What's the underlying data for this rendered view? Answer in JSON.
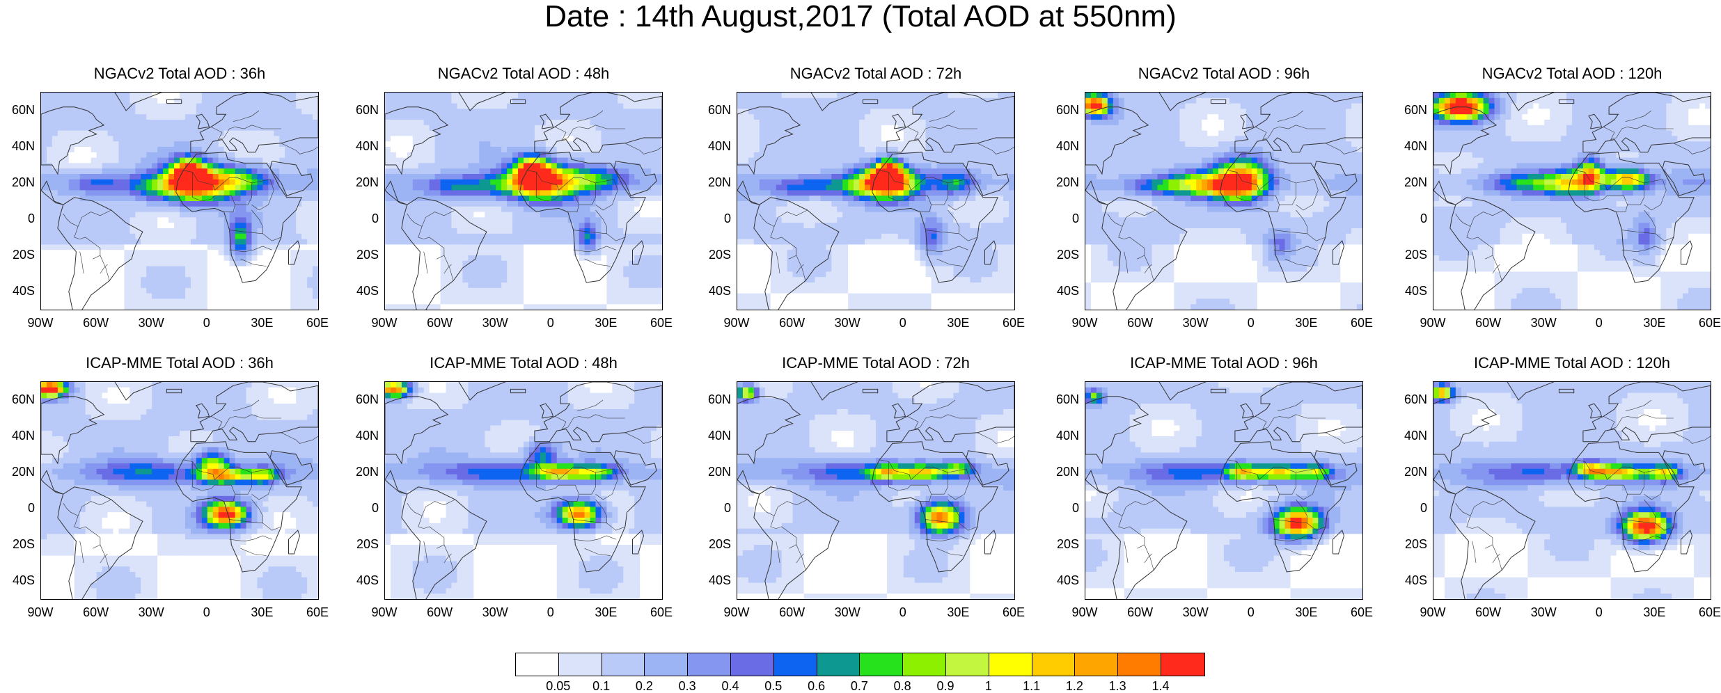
{
  "figure_title": "Date : 14th August,2017 (Total AOD at 550nm)",
  "panels": [
    {
      "title": "NGACv2 Total AOD : 36h",
      "model": "NGACv2",
      "hour": 36
    },
    {
      "title": "NGACv2 Total AOD : 48h",
      "model": "NGACv2",
      "hour": 48
    },
    {
      "title": "NGACv2 Total AOD : 72h",
      "model": "NGACv2",
      "hour": 72
    },
    {
      "title": "NGACv2 Total AOD : 96h",
      "model": "NGACv2",
      "hour": 96
    },
    {
      "title": "NGACv2 Total AOD : 120h",
      "model": "NGACv2",
      "hour": 120
    },
    {
      "title": "ICAP-MME Total AOD : 36h",
      "model": "ICAP-MME",
      "hour": 36
    },
    {
      "title": "ICAP-MME Total AOD : 48h",
      "model": "ICAP-MME",
      "hour": 48
    },
    {
      "title": "ICAP-MME Total AOD : 72h",
      "model": "ICAP-MME",
      "hour": 72
    },
    {
      "title": "ICAP-MME Total AOD : 96h",
      "model": "ICAP-MME",
      "hour": 96
    },
    {
      "title": "ICAP-MME Total AOD : 120h",
      "model": "ICAP-MME",
      "hour": 120
    }
  ],
  "lat_ticks": [
    "60N",
    "40N",
    "20N",
    "0",
    "20S",
    "40S"
  ],
  "lon_ticks": [
    "90W",
    "60W",
    "30W",
    "0",
    "30E",
    "60E"
  ],
  "colorbar": {
    "colors": [
      "#ffffff",
      "#dbe3fb",
      "#b9c9f8",
      "#9db4f4",
      "#8596f0",
      "#6a6ce6",
      "#0d64f0",
      "#0d9891",
      "#26e21d",
      "#8cf000",
      "#c3f73f",
      "#ffff00",
      "#ffcc00",
      "#ffa500",
      "#ff7c00",
      "#ff2a1b"
    ],
    "labels": [
      "0.05",
      "0.1",
      "0.2",
      "0.3",
      "0.4",
      "0.5",
      "0.6",
      "0.7",
      "0.8",
      "0.9",
      "1",
      "1.1",
      "1.2",
      "1.3",
      "1.4"
    ]
  }
}
